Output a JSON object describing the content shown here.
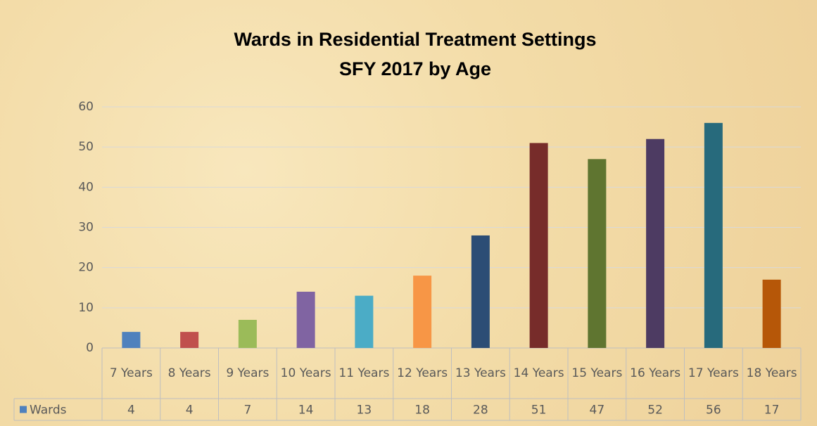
{
  "chart_data": {
    "type": "bar",
    "title": "Wards in Residential Treatment Settings",
    "subtitle": "SFY 2017 by Age",
    "categories": [
      "7 Years",
      "8 Years",
      "9 Years",
      "10 Years",
      "11 Years",
      "12 Years",
      "13 Years",
      "14 Years",
      "15 Years",
      "16 Years",
      "17 Years",
      "18 Years"
    ],
    "series": [
      {
        "name": "Wards",
        "color": "#4f81bd",
        "colors": [
          "#4f81bd",
          "#c0504d",
          "#9bbb59",
          "#8064a2",
          "#4bacc6",
          "#f79646",
          "#2c4d75",
          "#772c2a",
          "#5f7530",
          "#4d3b62",
          "#276a7c",
          "#b65708"
        ],
        "values": [
          4,
          4,
          7,
          14,
          13,
          18,
          28,
          51,
          47,
          52,
          56,
          17
        ]
      }
    ],
    "ylim": [
      0,
      60
    ],
    "yticks": [
      0,
      10,
      20,
      30,
      40,
      50,
      60
    ],
    "grid": true,
    "data_table": true
  }
}
